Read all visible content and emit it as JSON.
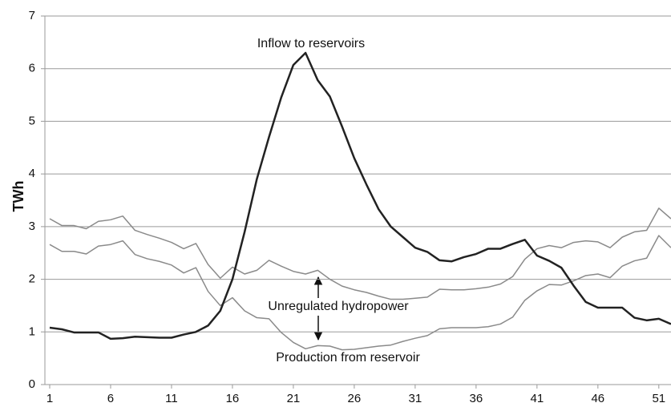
{
  "chart_data": {
    "type": "line",
    "ylabel": "TWh",
    "annotations": [
      "Inflow to reservoirs",
      "Unregulated hydropower",
      "Production from reservoir"
    ],
    "x": [
      1,
      2,
      3,
      4,
      5,
      6,
      7,
      8,
      9,
      10,
      11,
      12,
      13,
      14,
      15,
      16,
      17,
      18,
      19,
      20,
      21,
      22,
      23,
      24,
      25,
      26,
      27,
      28,
      29,
      30,
      31,
      32,
      33,
      34,
      35,
      36,
      37,
      38,
      39,
      40,
      41,
      42,
      43,
      44,
      45,
      46,
      47,
      48,
      49,
      50,
      51,
      52
    ],
    "xlim": [
      1,
      52
    ],
    "xticks": [
      1,
      6,
      11,
      16,
      21,
      26,
      31,
      36,
      41,
      46,
      51
    ],
    "ylim": [
      0,
      7
    ],
    "yticks": [
      0,
      1,
      2,
      3,
      4,
      5,
      6,
      7
    ],
    "grid": true,
    "series": [
      {
        "color": "#8a8a8a",
        "width": 1.5,
        "values": [
          3.15,
          3.02,
          3.02,
          2.96,
          3.1,
          3.13,
          3.2,
          2.93,
          2.85,
          2.78,
          2.7,
          2.58,
          2.68,
          2.28,
          2.02,
          2.23,
          2.1,
          2.17,
          2.36,
          2.25,
          2.15,
          2.1,
          2.17,
          2.0,
          1.87,
          1.8,
          1.75,
          1.68,
          1.62,
          1.62,
          1.64,
          1.66,
          1.81,
          1.8,
          1.8,
          1.82,
          1.85,
          1.91,
          2.05,
          2.38,
          2.58,
          2.64,
          2.6,
          2.7,
          2.73,
          2.71,
          2.6,
          2.8,
          2.9,
          2.93,
          3.35,
          3.15
        ]
      },
      {
        "color": "#8a8a8a",
        "width": 1.5,
        "values": [
          2.66,
          2.53,
          2.53,
          2.48,
          2.63,
          2.66,
          2.73,
          2.47,
          2.39,
          2.34,
          2.27,
          2.12,
          2.22,
          1.77,
          1.5,
          1.65,
          1.4,
          1.27,
          1.25,
          0.99,
          0.8,
          0.68,
          0.74,
          0.73,
          0.66,
          0.67,
          0.7,
          0.73,
          0.75,
          0.82,
          0.88,
          0.93,
          1.06,
          1.08,
          1.08,
          1.08,
          1.1,
          1.15,
          1.28,
          1.6,
          1.78,
          1.9,
          1.89,
          1.97,
          2.07,
          2.1,
          2.03,
          2.25,
          2.35,
          2.4,
          2.83,
          2.6
        ]
      },
      {
        "color": "#222222",
        "width": 2.5,
        "values": [
          1.08,
          1.05,
          0.99,
          0.99,
          0.99,
          0.87,
          0.88,
          0.91,
          0.9,
          0.89,
          0.89,
          0.95,
          1.0,
          1.12,
          1.4,
          2.0,
          2.9,
          3.9,
          4.7,
          5.45,
          6.07,
          6.3,
          5.78,
          5.47,
          4.9,
          4.3,
          3.8,
          3.33,
          3.0,
          2.8,
          2.6,
          2.52,
          2.36,
          2.34,
          2.42,
          2.48,
          2.58,
          2.58,
          2.67,
          2.75,
          2.45,
          2.35,
          2.22,
          1.88,
          1.57,
          1.46,
          1.46,
          1.46,
          1.27,
          1.22,
          1.25,
          1.15
        ]
      }
    ]
  }
}
